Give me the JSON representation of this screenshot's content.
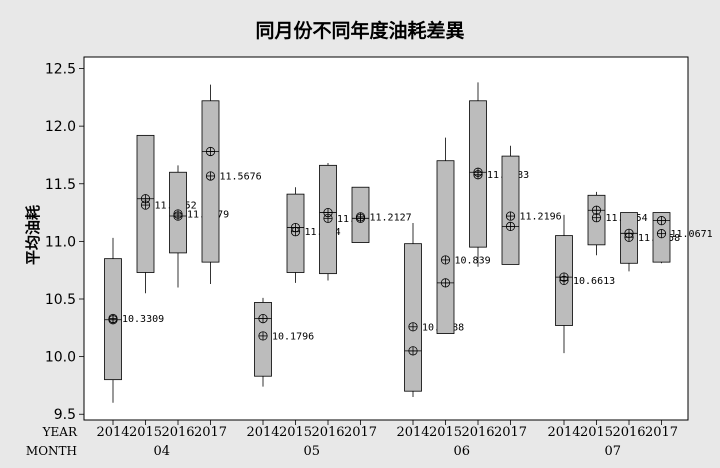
{
  "chart_data": {
    "type": "boxplot",
    "title": "同月份不同年度油耗差異",
    "ylabel": "平均油耗",
    "ylim": [
      9.45,
      12.6
    ],
    "yticks": [
      "9.5",
      "10.0",
      "10.5",
      "11.0",
      "11.5",
      "12.0",
      "12.5"
    ],
    "row_labels": {
      "year": "YEAR",
      "month": "MONTH"
    },
    "groups": [
      {
        "month": "04",
        "boxes": [
          {
            "year": "2014",
            "whisker_low": 9.6,
            "q1": 9.8,
            "median": 10.32,
            "q3": 10.85,
            "whisker_high": 11.03,
            "mean": 10.3309,
            "mean_label": "10.3309"
          },
          {
            "year": "2015",
            "whisker_low": 10.55,
            "q1": 10.73,
            "median": 11.37,
            "q3": 11.92,
            "whisker_high": 11.92,
            "mean": 11.3152,
            "mean_label": "11.3152"
          },
          {
            "year": "2016",
            "whisker_low": 10.6,
            "q1": 10.9,
            "median": 11.22,
            "q3": 11.6,
            "whisker_high": 11.66,
            "mean": 11.2379,
            "mean_label": "11.2379"
          },
          {
            "year": "2017",
            "whisker_low": 10.63,
            "q1": 10.82,
            "median": 11.78,
            "q3": 12.22,
            "whisker_high": 12.36,
            "mean": 11.5676,
            "mean_label": "11.5676"
          }
        ]
      },
      {
        "month": "05",
        "boxes": [
          {
            "year": "2014",
            "whisker_low": 9.74,
            "q1": 9.83,
            "median": 10.33,
            "q3": 10.47,
            "whisker_high": 10.51,
            "mean": 10.1796,
            "mean_label": "10.1796"
          },
          {
            "year": "2015",
            "whisker_low": 10.64,
            "q1": 10.73,
            "median": 11.12,
            "q3": 11.41,
            "whisker_high": 11.47,
            "mean": 11.084,
            "mean_label": "11.084"
          },
          {
            "year": "2016",
            "whisker_low": 10.66,
            "q1": 10.72,
            "median": 11.25,
            "q3": 11.66,
            "whisker_high": 11.68,
            "mean": 11.2,
            "mean_label": "11.2"
          },
          {
            "year": "2017",
            "whisker_low": 10.99,
            "q1": 10.99,
            "median": 11.2,
            "q3": 11.47,
            "whisker_high": 11.47,
            "mean": 11.2127,
            "mean_label": "11.2127"
          }
        ]
      },
      {
        "month": "06",
        "boxes": [
          {
            "year": "2014",
            "whisker_low": 9.65,
            "q1": 9.7,
            "median": 10.05,
            "q3": 10.98,
            "whisker_high": 11.16,
            "mean": 10.2588,
            "mean_label": "10.2588"
          },
          {
            "year": "2015",
            "whisker_low": 10.2,
            "q1": 10.2,
            "median": 10.64,
            "q3": 11.7,
            "whisker_high": 11.9,
            "mean": 10.839,
            "mean_label": "10.839"
          },
          {
            "year": "2016",
            "whisker_low": 10.78,
            "q1": 10.95,
            "median": 11.6,
            "q3": 12.22,
            "whisker_high": 12.38,
            "mean": 11.5783,
            "mean_label": "11.5783"
          },
          {
            "year": "2017",
            "whisker_low": 10.8,
            "q1": 10.8,
            "median": 11.13,
            "q3": 11.74,
            "whisker_high": 11.83,
            "mean": 11.2196,
            "mean_label": "11.2196"
          }
        ]
      },
      {
        "month": "07",
        "boxes": [
          {
            "year": "2014",
            "whisker_low": 10.03,
            "q1": 10.27,
            "median": 10.69,
            "q3": 11.05,
            "whisker_high": 11.23,
            "mean": 10.6613,
            "mean_label": "10.6613"
          },
          {
            "year": "2015",
            "whisker_low": 10.88,
            "q1": 10.97,
            "median": 11.27,
            "q3": 11.4,
            "whisker_high": 11.43,
            "mean": 11.2054,
            "mean_label": "11.2054"
          },
          {
            "year": "2016",
            "whisker_low": 10.74,
            "q1": 10.81,
            "median": 11.07,
            "q3": 11.25,
            "whisker_high": 11.25,
            "mean": 11.0358,
            "mean_label": "11.0358"
          },
          {
            "year": "2017",
            "whisker_low": 10.81,
            "q1": 10.82,
            "median": 11.18,
            "q3": 11.25,
            "whisker_high": 11.25,
            "mean": 11.0671,
            "mean_label": "11.0671"
          }
        ]
      }
    ]
  }
}
